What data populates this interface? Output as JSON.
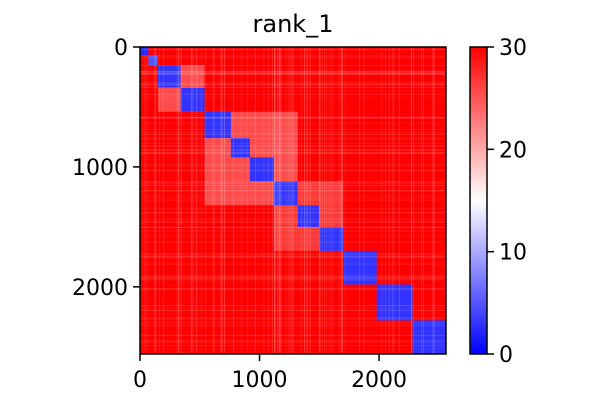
{
  "chart_data": {
    "type": "heatmap",
    "title": "rank_1",
    "xlabel": "",
    "ylabel": "",
    "x_range": [
      0,
      2560
    ],
    "y_range": [
      0,
      2560
    ],
    "y_inverted": true,
    "x_ticks": [
      0,
      1000,
      2000
    ],
    "y_ticks": [
      0,
      1000,
      2000
    ],
    "colorbar": {
      "range": [
        0,
        30
      ],
      "ticks": [
        0,
        10,
        20,
        30
      ],
      "colormap": "bwr",
      "colors": [
        "#0000ff",
        "#ffffff",
        "#ff0000"
      ],
      "placement": "right"
    },
    "background_value": 30,
    "diagonal_blocks": [
      {
        "start": 0,
        "end": 70,
        "value": 2
      },
      {
        "start": 70,
        "end": 150,
        "value": 5
      },
      {
        "start": 150,
        "end": 340,
        "value": 3
      },
      {
        "start": 340,
        "end": 540,
        "value": 3
      },
      {
        "start": 540,
        "end": 760,
        "value": 3
      },
      {
        "start": 760,
        "end": 920,
        "value": 3
      },
      {
        "start": 920,
        "end": 1120,
        "value": 3
      },
      {
        "start": 1120,
        "end": 1320,
        "value": 3
      },
      {
        "start": 1320,
        "end": 1500,
        "value": 3
      },
      {
        "start": 1500,
        "end": 1700,
        "value": 3
      },
      {
        "start": 1700,
        "end": 1980,
        "value": 3
      },
      {
        "start": 1980,
        "end": 2280,
        "value": 3
      },
      {
        "start": 2280,
        "end": 2560,
        "value": 3
      }
    ],
    "off_diagonal_regions": [
      {
        "x_start": 150,
        "x_end": 540,
        "y_start": 150,
        "y_end": 540,
        "value": 22
      },
      {
        "x_start": 540,
        "x_end": 1320,
        "y_start": 540,
        "y_end": 1320,
        "value": 22
      },
      {
        "x_start": 1120,
        "x_end": 1700,
        "y_start": 1120,
        "y_end": 1700,
        "value": 24
      }
    ]
  }
}
